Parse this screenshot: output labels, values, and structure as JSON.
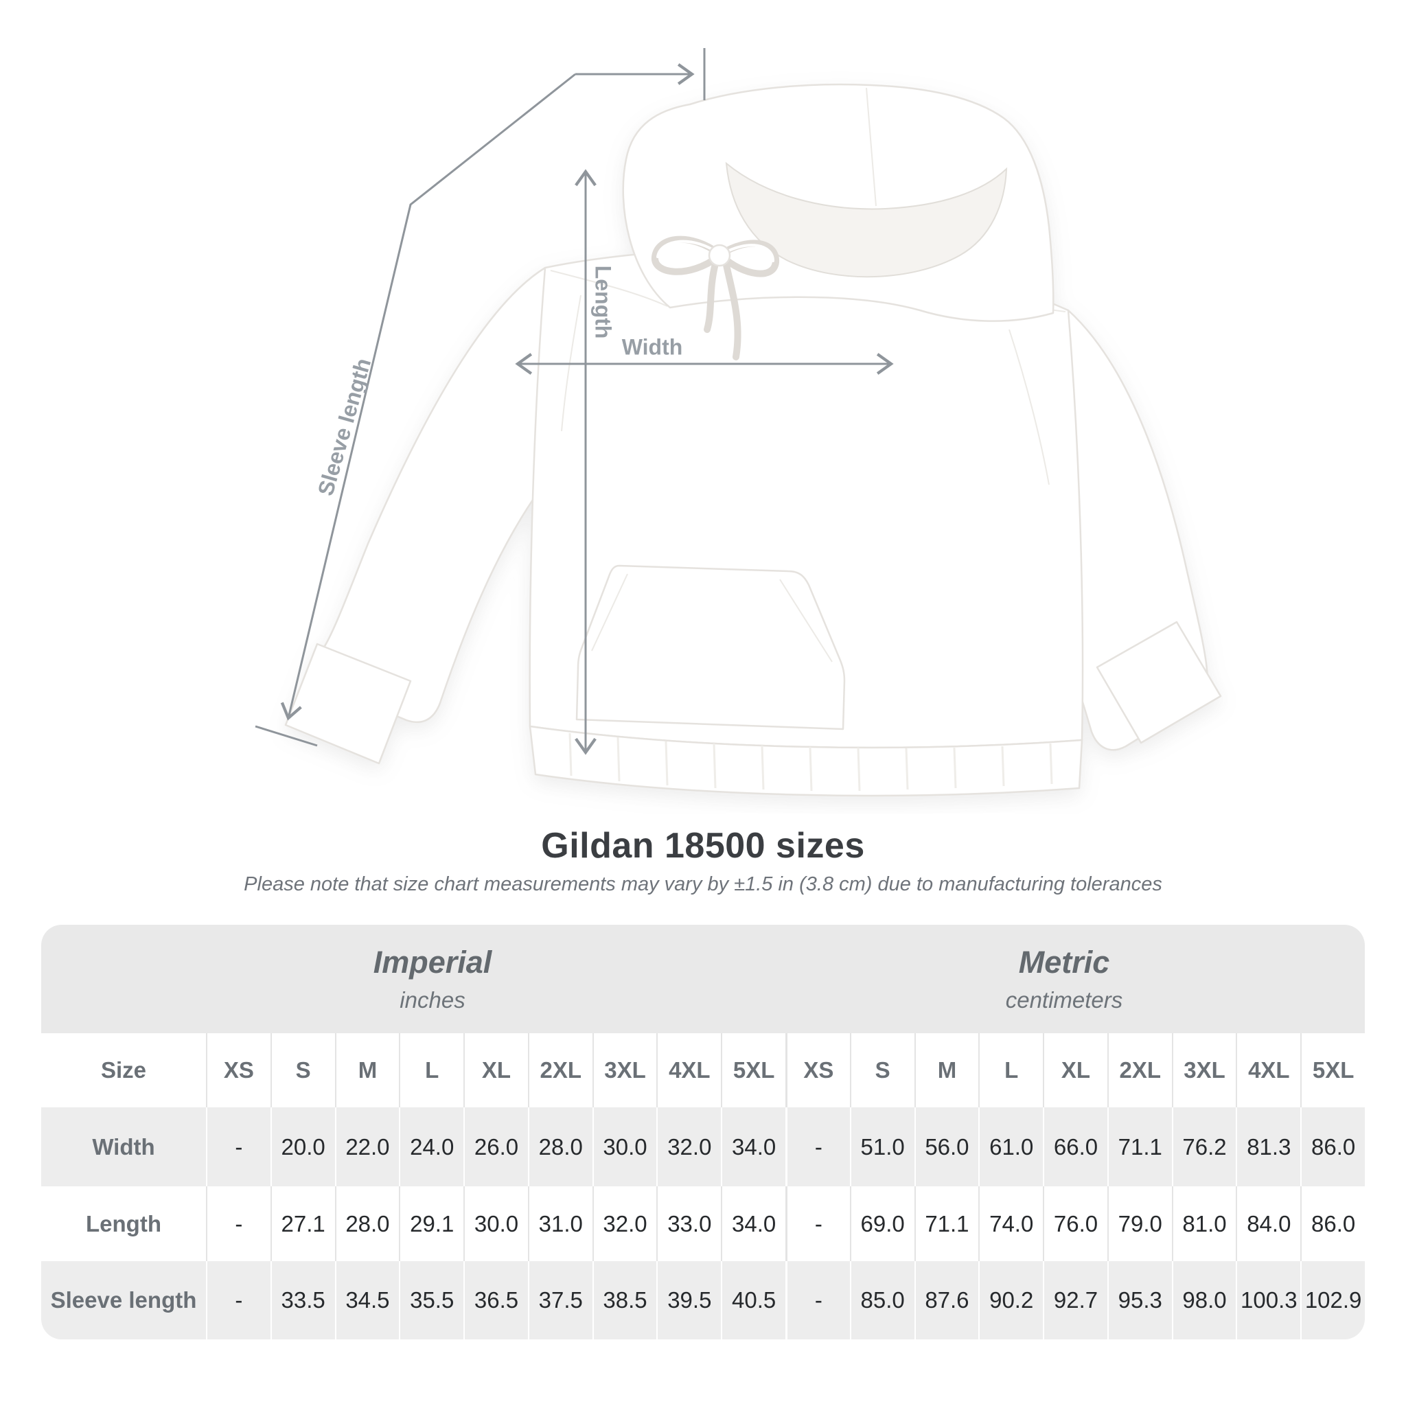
{
  "diagram": {
    "labels": {
      "sleeve": "Sleeve length",
      "length": "Length",
      "width": "Width"
    },
    "line_color": "#8f959b",
    "label_color": "#979ea5"
  },
  "heading": {
    "title": "Gildan 18500 sizes",
    "subtitle": "Please note that size chart measurements may vary by ±1.5 in (3.8 cm) due to manufacturing tolerances"
  },
  "table": {
    "unit_groups": [
      {
        "name": "Imperial",
        "unit": "inches"
      },
      {
        "name": "Metric",
        "unit": "centimeters"
      }
    ],
    "size_header": "Size",
    "sizes": [
      "XS",
      "S",
      "M",
      "L",
      "XL",
      "2XL",
      "3XL",
      "4XL",
      "5XL",
      "XS",
      "S",
      "M",
      "L",
      "XL",
      "2XL",
      "3XL",
      "4XL",
      "5XL"
    ],
    "rows": [
      {
        "label": "Width",
        "values": [
          "-",
          "20.0",
          "22.0",
          "24.0",
          "26.0",
          "28.0",
          "30.0",
          "32.0",
          "34.0",
          "-",
          "51.0",
          "56.0",
          "61.0",
          "66.0",
          "71.1",
          "76.2",
          "81.3",
          "86.0"
        ]
      },
      {
        "label": "Length",
        "values": [
          "-",
          "27.1",
          "28.0",
          "29.1",
          "30.0",
          "31.0",
          "32.0",
          "33.0",
          "34.0",
          "-",
          "69.0",
          "71.1",
          "74.0",
          "76.0",
          "79.0",
          "81.0",
          "84.0",
          "86.0"
        ]
      },
      {
        "label": "Sleeve length",
        "values": [
          "-",
          "33.5",
          "34.5",
          "35.5",
          "36.5",
          "37.5",
          "38.5",
          "39.5",
          "40.5",
          "-",
          "85.0",
          "87.6",
          "90.2",
          "92.7",
          "95.3",
          "98.0",
          "100.3",
          "102.9"
        ]
      }
    ],
    "colors": {
      "band_background": "#e9e9e9",
      "stripe_background": "#ededed",
      "header_text": "#6a7076",
      "value_text": "#26292c"
    }
  }
}
